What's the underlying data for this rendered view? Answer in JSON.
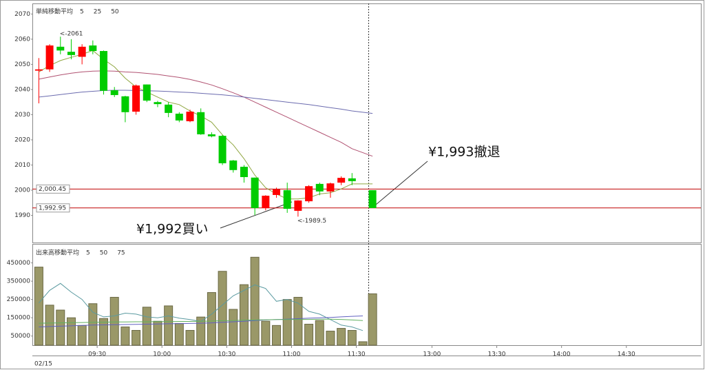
{
  "chart_data": [
    {
      "type": "candlestick",
      "legend_title": "単純移動平均",
      "x": [
        0,
        1,
        2,
        3,
        4,
        5,
        6,
        7,
        8,
        9,
        10,
        11,
        12,
        13,
        14,
        15,
        16,
        17,
        18,
        19,
        20,
        21,
        22,
        23,
        24,
        25,
        26,
        27,
        28,
        29,
        30.9
      ],
      "open": [
        2047.5,
        2048,
        2057,
        2055,
        2053,
        2057.5,
        2055.3,
        2039.7,
        2037.3,
        2031.2,
        2042,
        2035,
        2034,
        2030.4,
        2027.4,
        2031,
        2022.2,
        2021.6,
        2011.8,
        2009.3,
        2005,
        1992.9,
        1998.1,
        2000,
        1991.8,
        1995.6,
        2002.5,
        1999.5,
        2003,
        2004.7,
        2000
      ],
      "high": [
        2052.5,
        2058,
        2061,
        2060,
        2058,
        2059.5,
        2055.5,
        2041,
        2037.5,
        2042,
        2042,
        2035.5,
        2035,
        2031,
        2032,
        2032.5,
        2023,
        2022,
        2012,
        2010,
        2005,
        1998,
        2001,
        2003,
        1996,
        2002,
        2003,
        2003,
        2005.5,
        2006.8,
        2000
      ],
      "low": [
        2034.5,
        2047,
        2054,
        2052,
        2050,
        2054,
        2038,
        2037,
        2027,
        2030,
        2035,
        2033,
        2029,
        2027,
        2027,
        2022,
        2021,
        2010,
        2007,
        2003,
        1990.1,
        1992,
        1997,
        1991,
        1989.5,
        1995,
        1998,
        1997,
        2002,
        2002,
        1992.9
      ],
      "close": [
        2048,
        2057.5,
        2055.5,
        2053.7,
        2057,
        2055.3,
        2039.5,
        2037.8,
        2031,
        2041.6,
        2035.6,
        2034.2,
        2030.7,
        2027.7,
        2031.2,
        2022.2,
        2021.4,
        2010.7,
        2008,
        2005.2,
        1992.9,
        1997.8,
        2000.3,
        1992.6,
        1995.9,
        2001.6,
        1999.5,
        2002.7,
        2004.9,
        2003.6,
        1992.9
      ],
      "up_color": "#ff0000",
      "down_color": "#00cc00",
      "lines": [
        {
          "name": "5",
          "color": "#8fa640",
          "values": [
            2047,
            2049.5,
            2051.5,
            2052.8,
            2054,
            2055.5,
            2052,
            2049,
            2044.5,
            2041,
            2039,
            2037,
            2035,
            2034,
            2031.5,
            2029.5,
            2027,
            2022,
            2018,
            2012.5,
            2006,
            2001,
            1998.5,
            1996.5,
            1996.5,
            1997,
            1998.5,
            1999,
            2000.5,
            2002.5,
            2002.5
          ]
        },
        {
          "name": "25",
          "color": "#b05070",
          "values": [
            2044.1,
            2045,
            2045.8,
            2046.5,
            2047,
            2047.3,
            2047.4,
            2047.3,
            2047,
            2046.8,
            2046.4,
            2046,
            2045.4,
            2044.8,
            2044,
            2043,
            2041.8,
            2040.3,
            2038.7,
            2037,
            2035,
            2033,
            2031,
            2029,
            2027,
            2025,
            2023,
            2021,
            2019,
            2016.5,
            2013.5
          ]
        },
        {
          "name": "50",
          "color": "#6a6aae",
          "values": [
            2037,
            2037.5,
            2038,
            2038.5,
            2039,
            2039.3,
            2039.6,
            2039.7,
            2039.7,
            2039.6,
            2039.5,
            2039.4,
            2039.2,
            2039,
            2038.8,
            2038.5,
            2038.2,
            2037.9,
            2037.5,
            2037,
            2036.5,
            2036,
            2035.5,
            2035,
            2034.5,
            2034,
            2033.4,
            2032.8,
            2032.2,
            2031.5,
            2030.5
          ]
        }
      ],
      "hlines": [
        {
          "value": 2000.45,
          "label": "2,000.45"
        },
        {
          "value": 1992.95,
          "label": "1,992.95"
        }
      ],
      "hline_color": "#c00000",
      "annotations": [
        {
          "x": 2,
          "value": 2061,
          "label": "<-2061",
          "color": "#e00000"
        },
        {
          "x": 24,
          "value": 1989.5,
          "label": "<-1989.5",
          "color": "#00b000"
        }
      ],
      "callouts": [
        "¥1,992買い",
        "¥1,993撤退"
      ],
      "xlim": [
        -0.6,
        61.3
      ],
      "ylim": [
        1979.2,
        2074.2
      ],
      "yticks": [
        1990,
        2000,
        2010,
        2020,
        2030,
        2040,
        2050,
        2060,
        2070
      ]
    },
    {
      "type": "bar",
      "legend_title": "出来高移動平均",
      "x": [
        0,
        1,
        2,
        3,
        4,
        5,
        6,
        7,
        8,
        9,
        10,
        11,
        12,
        13,
        14,
        15,
        16,
        17,
        18,
        19,
        20,
        21,
        22,
        23,
        24,
        25,
        26,
        27,
        28,
        29,
        30,
        30.9
      ],
      "values": [
        427000,
        219000,
        192000,
        150000,
        108000,
        227000,
        146000,
        262000,
        100000,
        81000,
        208000,
        131000,
        215000,
        119000,
        81000,
        154000,
        288000,
        404000,
        196000,
        331000,
        481000,
        131000,
        108000,
        250000,
        262000,
        115000,
        135000,
        77000,
        92000,
        81000,
        19000,
        281000
      ],
      "color": "#9a9868",
      "lines": [
        {
          "name": "5",
          "color": "#5a9aa0",
          "values": [
            231000,
            300000,
            338000,
            290000,
            250000,
            180000,
            155000,
            160000,
            175000,
            170000,
            155000,
            150000,
            160000,
            148000,
            140000,
            130000,
            170000,
            220000,
            270000,
            300000,
            330000,
            310000,
            240000,
            250000,
            230000,
            185000,
            170000,
            140000,
            110000,
            100000,
            80000,
            null
          ]
        },
        {
          "name": "50",
          "color": "#6060c0",
          "values": [
            100000,
            102000,
            104000,
            106000,
            108000,
            110000,
            111000,
            112000,
            113000,
            114000,
            115000,
            116000,
            117000,
            118000,
            119000,
            120000,
            122000,
            125000,
            128000,
            131000,
            135000,
            138000,
            140000,
            142000,
            145000,
            148000,
            150000,
            152000,
            155000,
            158000,
            160000,
            null
          ]
        },
        {
          "name": "75",
          "color": "#60b060",
          "values": [
            120000,
            121000,
            122000,
            123000,
            124000,
            125000,
            126000,
            127000,
            127000,
            128000,
            128000,
            129000,
            129000,
            130000,
            130000,
            131000,
            132000,
            134000,
            135000,
            137000,
            138000,
            139000,
            140000,
            140000,
            141000,
            141000,
            142000,
            142000,
            141000,
            138000,
            135000,
            null
          ]
        }
      ],
      "date_label": "02/15",
      "xlim": [
        -0.6,
        61.3
      ],
      "xticks": [
        {
          "value": 5.4,
          "label": "09:30"
        },
        {
          "value": 11.4,
          "label": "10:00"
        },
        {
          "value": 17.4,
          "label": "10:30"
        },
        {
          "value": 23.4,
          "label": "11:00"
        },
        {
          "value": 29.4,
          "label": "11:30"
        },
        {
          "value": 36.4,
          "label": "13:00"
        },
        {
          "value": 42.4,
          "label": "13:30"
        },
        {
          "value": 48.4,
          "label": "14:00"
        },
        {
          "value": 54.4,
          "label": "14:30"
        }
      ],
      "ylim": [
        0,
        550000
      ],
      "yticks": [
        50000,
        150000,
        250000,
        350000,
        450000
      ]
    }
  ]
}
